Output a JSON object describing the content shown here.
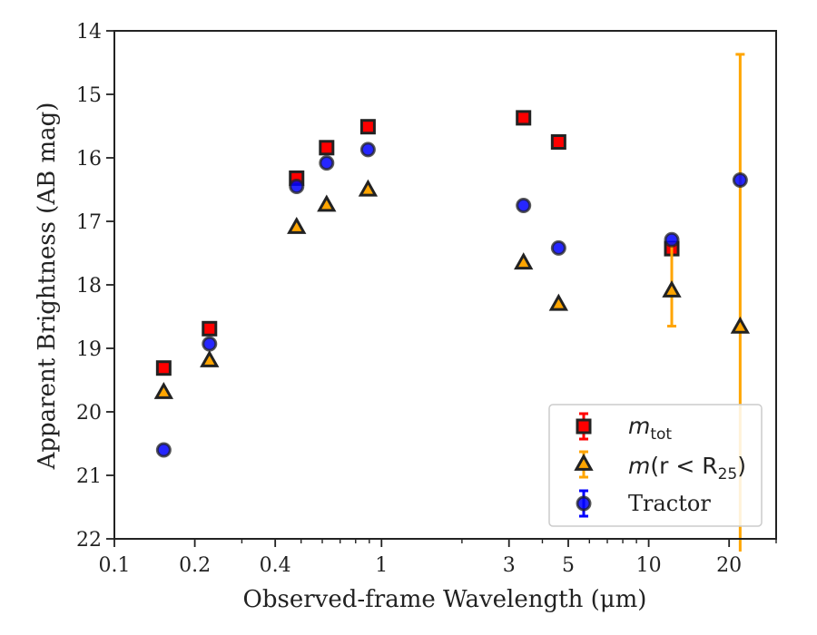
{
  "chart_data": {
    "type": "scatter",
    "xlabel": "Observed-frame Wavelength (μm)",
    "ylabel": "Apparent Brightness (AB mag)",
    "xscale": "log",
    "xlim": [
      0.1,
      30
    ],
    "ylim": [
      22,
      14
    ],
    "y_inverted": true,
    "x_ticks": [
      {
        "value": 0.1,
        "label": "0.1"
      },
      {
        "value": 0.2,
        "label": "0.2"
      },
      {
        "value": 0.4,
        "label": "0.4"
      },
      {
        "value": 1,
        "label": "1"
      },
      {
        "value": 3,
        "label": "3"
      },
      {
        "value": 5,
        "label": "5"
      },
      {
        "value": 10,
        "label": "10"
      },
      {
        "value": 20,
        "label": "20"
      }
    ],
    "y_ticks": [
      {
        "value": 14,
        "label": "14"
      },
      {
        "value": 15,
        "label": "15"
      },
      {
        "value": 16,
        "label": "16"
      },
      {
        "value": 17,
        "label": "17"
      },
      {
        "value": 18,
        "label": "18"
      },
      {
        "value": 19,
        "label": "19"
      },
      {
        "value": 20,
        "label": "20"
      },
      {
        "value": 21,
        "label": "21"
      },
      {
        "value": 22,
        "label": "22"
      }
    ],
    "grid": false,
    "legend_position": "lower-right",
    "series": [
      {
        "name": "m_tot",
        "marker": "square",
        "color": "#ff0000",
        "edge_color": "#222222",
        "error_color": "#ff0000",
        "points": [
          {
            "x": 0.153,
            "y": 19.31
          },
          {
            "x": 0.227,
            "y": 18.69
          },
          {
            "x": 0.481,
            "y": 16.32
          },
          {
            "x": 0.623,
            "y": 15.84
          },
          {
            "x": 0.89,
            "y": 15.51
          },
          {
            "x": 3.4,
            "y": 15.37
          },
          {
            "x": 4.6,
            "y": 15.75
          },
          {
            "x": 12.2,
            "y": 17.43
          }
        ]
      },
      {
        "name": "m(r<R25)",
        "marker": "triangle",
        "color": "#ffa500",
        "edge_color": "#222222",
        "error_color": "#ffa500",
        "points": [
          {
            "x": 0.153,
            "y": 19.7
          },
          {
            "x": 0.227,
            "y": 19.2
          },
          {
            "x": 0.481,
            "y": 17.1
          },
          {
            "x": 0.623,
            "y": 16.75
          },
          {
            "x": 0.89,
            "y": 16.51
          },
          {
            "x": 3.4,
            "y": 17.66
          },
          {
            "x": 4.6,
            "y": 18.31
          },
          {
            "x": 12.2,
            "y": 18.1,
            "yerr_low": 17.35,
            "yerr_high": 18.65
          },
          {
            "x": 22.0,
            "y": 18.67,
            "yerr_low": 14.37,
            "yerr_high": 22.2
          }
        ]
      },
      {
        "name": "Tractor",
        "marker": "circle",
        "color": "#0000ff",
        "edge_color": "#222222",
        "error_color": "#0000ff",
        "points": [
          {
            "x": 0.153,
            "y": 20.6
          },
          {
            "x": 0.227,
            "y": 18.93
          },
          {
            "x": 0.481,
            "y": 16.45
          },
          {
            "x": 0.623,
            "y": 16.08
          },
          {
            "x": 0.89,
            "y": 15.87
          },
          {
            "x": 3.4,
            "y": 16.75
          },
          {
            "x": 4.6,
            "y": 17.42
          },
          {
            "x": 12.2,
            "y": 17.29
          },
          {
            "x": 22.0,
            "y": 16.35
          }
        ]
      }
    ]
  },
  "legend": {
    "m_tot_base": "m",
    "m_tot_sub": "tot",
    "m_r_prefix": "m",
    "m_r_mid": "(r < R",
    "m_r_sub": "25",
    "m_r_suffix": ")",
    "tractor": "Tractor"
  }
}
